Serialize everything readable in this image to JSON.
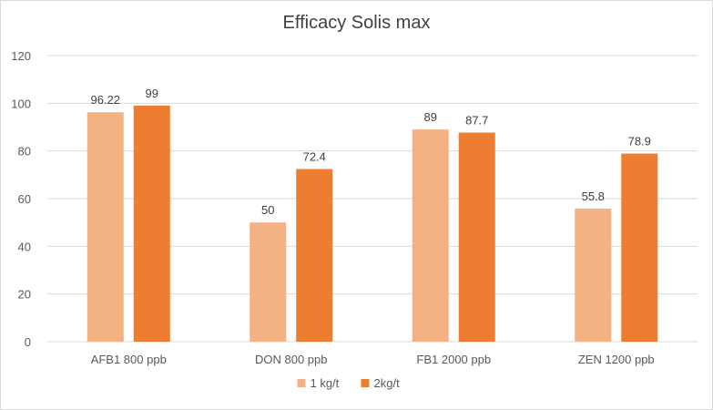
{
  "chart_data": {
    "type": "bar",
    "title": "Efficacy Solis max",
    "categories": [
      "AFB1 800 ppb",
      "DON 800 ppb",
      "FB1 2000 ppb",
      "ZEN 1200 ppb"
    ],
    "series": [
      {
        "name": "1 kg/t",
        "values": [
          96.22,
          50,
          89,
          55.8
        ],
        "color": "#f4b183"
      },
      {
        "name": "2kg/t",
        "values": [
          99,
          72.4,
          87.7,
          78.9
        ],
        "color": "#ed7d31"
      }
    ],
    "data_labels": [
      [
        "96.22",
        "50",
        "89",
        "55.8"
      ],
      [
        "99",
        "72.4",
        "87.7",
        "78.9"
      ]
    ],
    "y_ticks": [
      "0",
      "20",
      "40",
      "60",
      "80",
      "100",
      "120"
    ],
    "ylim": [
      0,
      120
    ],
    "xlabel": "",
    "ylabel": "",
    "grid": true,
    "legend_position": "bottom",
    "gridline_color": "#d9d9d9"
  }
}
